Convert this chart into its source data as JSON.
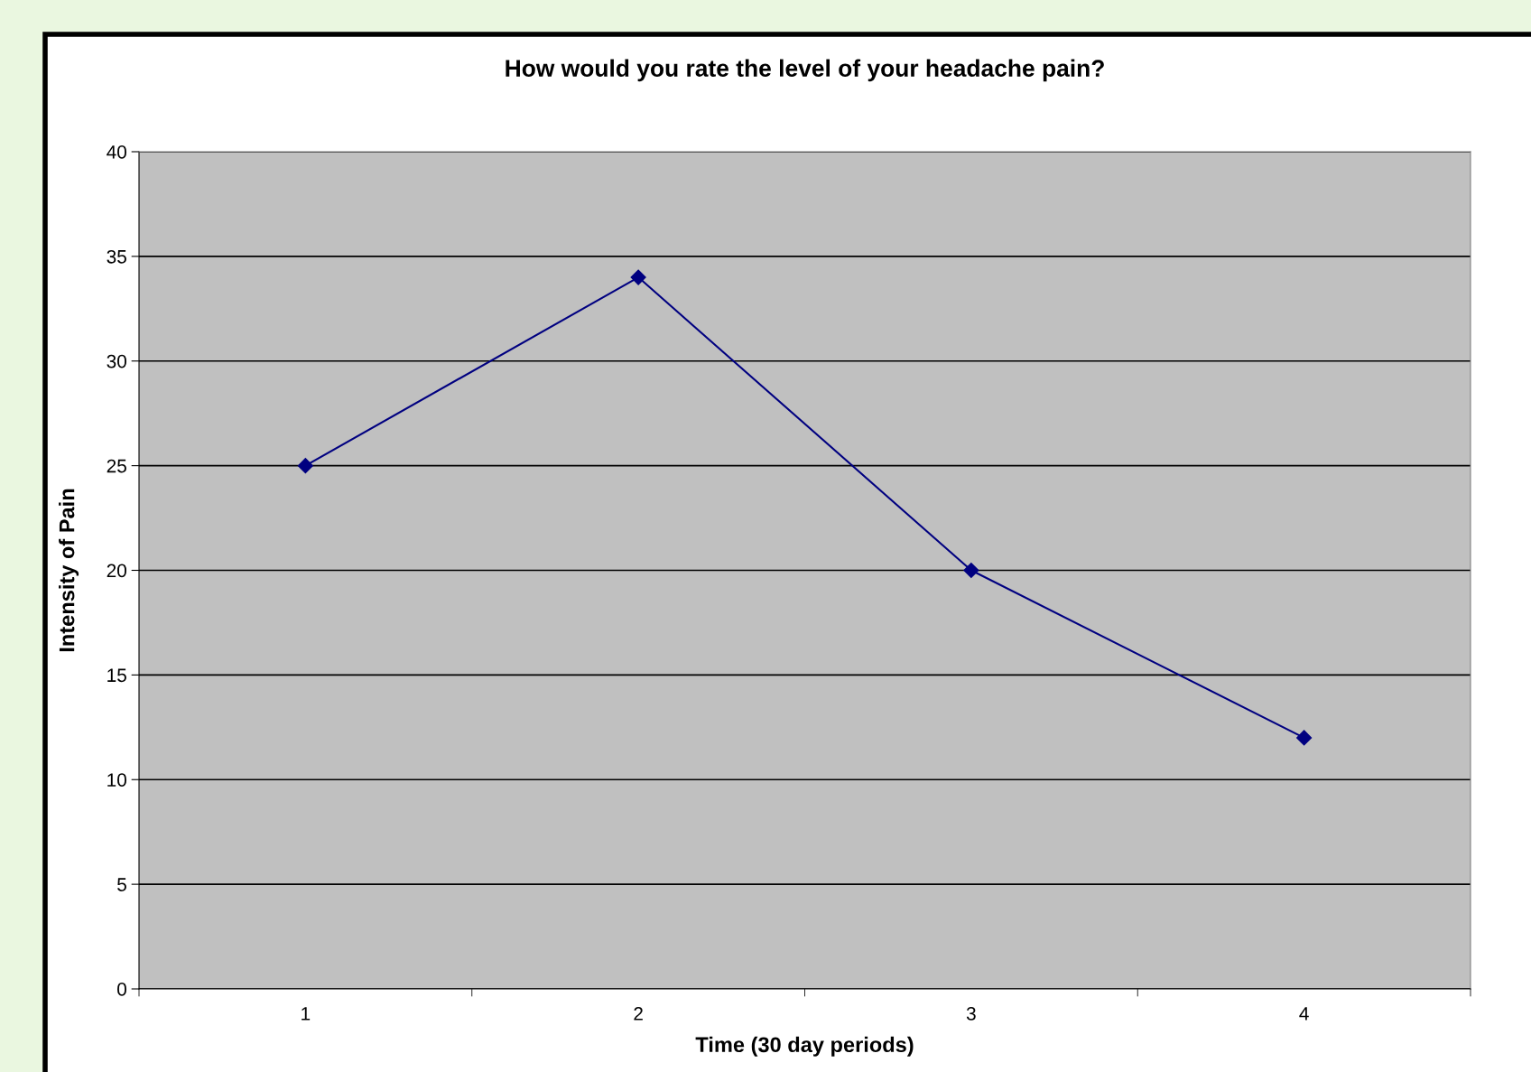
{
  "chart_data": {
    "type": "line",
    "title": "How would you rate the level of your headache pain?",
    "xlabel": "Time (30 day periods)",
    "ylabel": "Intensity of Pain",
    "categories": [
      "1",
      "2",
      "3",
      "4"
    ],
    "series": [
      {
        "color": "#000080",
        "values": [
          25,
          34,
          20,
          12
        ]
      }
    ],
    "ylim": [
      0,
      40
    ],
    "yticks": [
      0,
      5,
      10,
      15,
      20,
      25,
      30,
      35,
      40
    ],
    "grid": "y",
    "marker": "diamond",
    "line_style": "solid",
    "legend": false
  }
}
